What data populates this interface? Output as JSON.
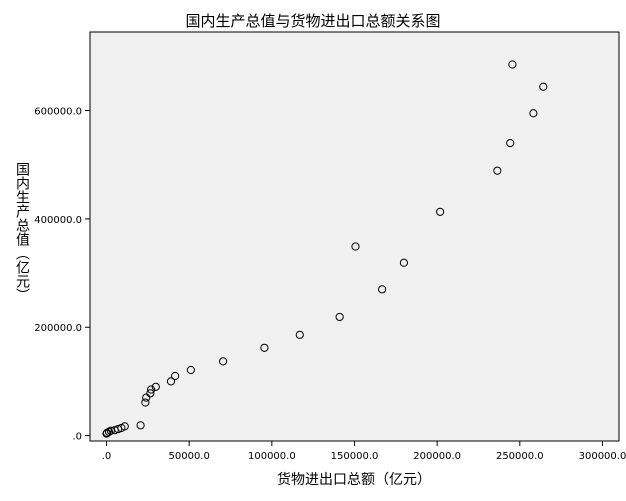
{
  "chart_data": {
    "type": "scatter",
    "title": "国内生产总值与货物进出口总额关系图",
    "xlabel": "货物进出口总额（亿元）",
    "ylabel": "国内生产总值（亿元）",
    "xlim": [
      -10000,
      310000
    ],
    "ylim": [
      -10000,
      745000
    ],
    "xticks": [
      0,
      50000,
      100000,
      150000,
      200000,
      250000,
      300000
    ],
    "xtick_labels": [
      ".0",
      "50000.0",
      "100000.0",
      "150000.0",
      "200000.0",
      "250000.0",
      "300000.0"
    ],
    "yticks": [
      0,
      200000,
      400000,
      600000
    ],
    "ytick_labels": [
      ".0",
      "200000.0",
      "400000.0",
      "600000.0"
    ],
    "grid": false,
    "points": [
      {
        "x": 0,
        "y": 3600
      },
      {
        "x": 300,
        "y": 5000
      },
      {
        "x": 1500,
        "y": 7000
      },
      {
        "x": 2600,
        "y": 9000
      },
      {
        "x": 5000,
        "y": 10000
      },
      {
        "x": 7000,
        "y": 12000
      },
      {
        "x": 9000,
        "y": 14000
      },
      {
        "x": 11000,
        "y": 17000
      },
      {
        "x": 20600,
        "y": 19000
      },
      {
        "x": 23500,
        "y": 61000
      },
      {
        "x": 24000,
        "y": 70000
      },
      {
        "x": 26500,
        "y": 78000
      },
      {
        "x": 27000,
        "y": 85000
      },
      {
        "x": 29800,
        "y": 90000
      },
      {
        "x": 39000,
        "y": 100000
      },
      {
        "x": 41500,
        "y": 110000
      },
      {
        "x": 51000,
        "y": 121000
      },
      {
        "x": 70500,
        "y": 137000
      },
      {
        "x": 95500,
        "y": 162000
      },
      {
        "x": 116900,
        "y": 186000
      },
      {
        "x": 141000,
        "y": 219000
      },
      {
        "x": 150600,
        "y": 349000
      },
      {
        "x": 166700,
        "y": 270000
      },
      {
        "x": 179900,
        "y": 319000
      },
      {
        "x": 201800,
        "y": 413000
      },
      {
        "x": 236400,
        "y": 489000
      },
      {
        "x": 244200,
        "y": 540000
      },
      {
        "x": 258200,
        "y": 595000
      },
      {
        "x": 264200,
        "y": 644000
      },
      {
        "x": 245500,
        "y": 685000
      }
    ],
    "colors": {
      "background": "#ffffff",
      "plot_background": "#f0f0f0",
      "axis": "#000000",
      "marker_stroke": "#000000",
      "marker_fill": "none"
    }
  }
}
